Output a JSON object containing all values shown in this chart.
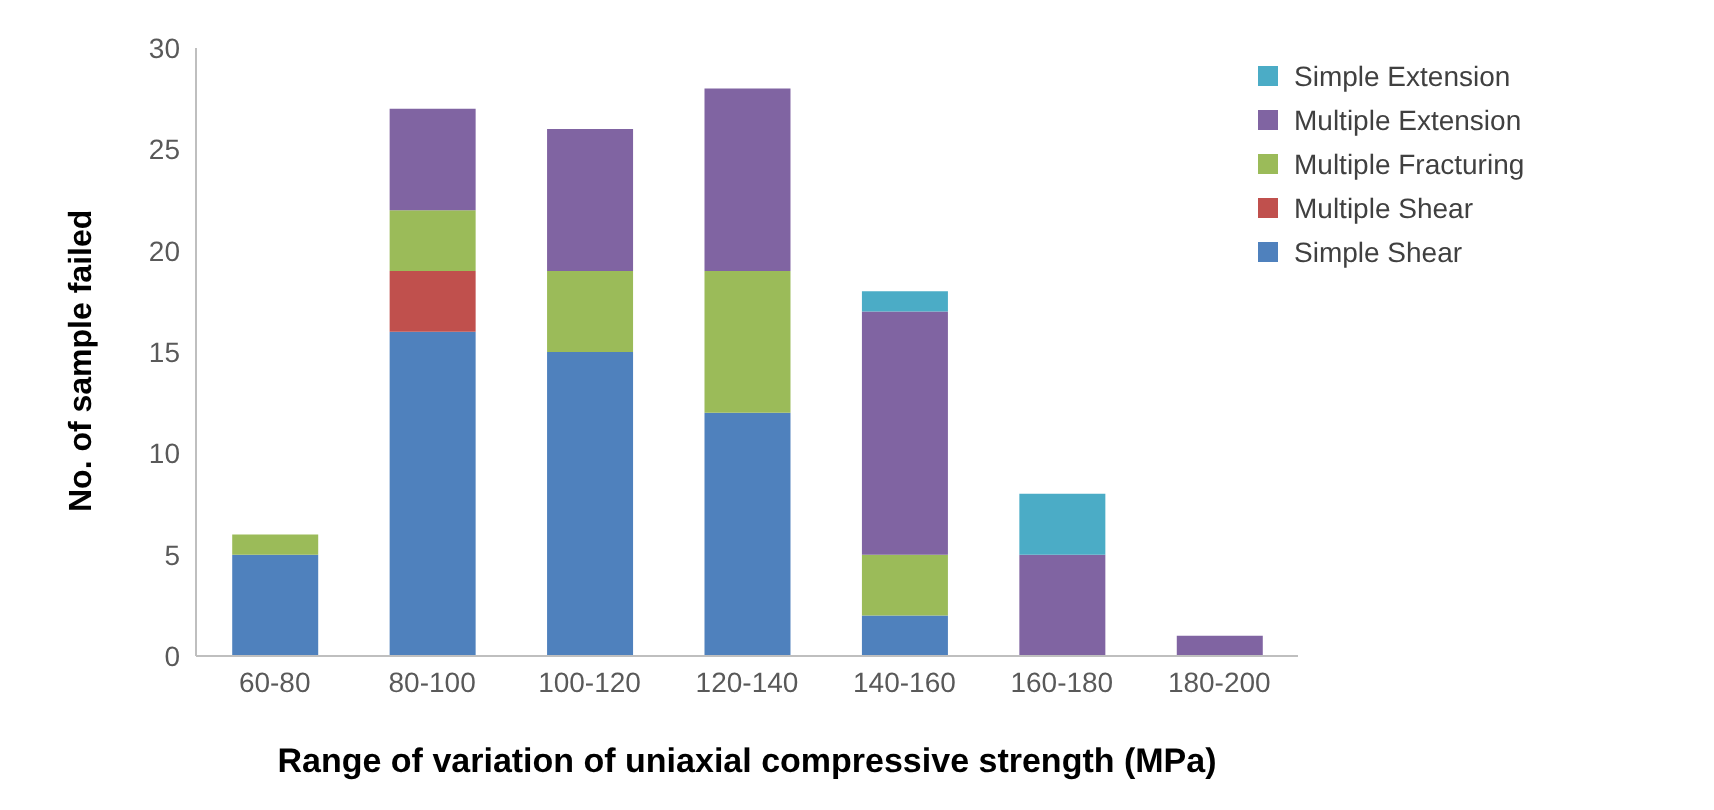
{
  "chart_data": {
    "type": "bar",
    "stacked": true,
    "xlabel": "Range of variation of uniaxial compressive strength (MPa)",
    "ylabel": "No. of sample failed",
    "categories": [
      "60-80",
      "80-100",
      "100-120",
      "120-140",
      "140-160",
      "160-180",
      "180-200"
    ],
    "series": [
      {
        "name": "Simple Shear",
        "color": "#4f81bd",
        "values": [
          5,
          16,
          15,
          12,
          2,
          0,
          0
        ]
      },
      {
        "name": "Multiple Shear",
        "color": "#c0504d",
        "values": [
          0,
          3,
          0,
          0,
          0,
          0,
          0
        ]
      },
      {
        "name": "Multiple Fracturing",
        "color": "#9bbb59",
        "values": [
          1,
          3,
          4,
          7,
          3,
          0,
          0
        ]
      },
      {
        "name": "Multiple Extension",
        "color": "#8064a2",
        "values": [
          0,
          5,
          7,
          9,
          12,
          5,
          1
        ]
      },
      {
        "name": "Simple Extension",
        "color": "#4bacc6",
        "values": [
          0,
          0,
          0,
          0,
          1,
          3,
          0
        ]
      }
    ],
    "ylim": [
      0,
      30
    ],
    "yticks": [
      0,
      5,
      10,
      15,
      20,
      25,
      30
    ],
    "grid": false,
    "legend": "top right"
  }
}
